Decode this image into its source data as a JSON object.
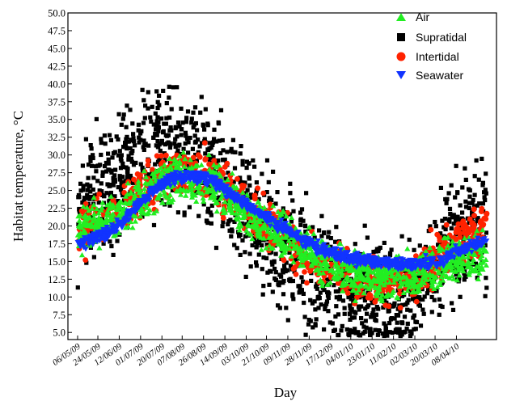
{
  "chart_data": {
    "type": "scatter",
    "title": "",
    "xlabel": "Day",
    "ylabel": "Habitat temperature, °C",
    "ylim": [
      4.0,
      50.0
    ],
    "yticks": [
      "5.0",
      "7.5",
      "10.0",
      "12.5",
      "15.0",
      "17.5",
      "20.0",
      "22.5",
      "25.0",
      "27.5",
      "30.0",
      "32.5",
      "35.0",
      "37.5",
      "40.0",
      "42.5",
      "45.0",
      "47.5",
      "50.0"
    ],
    "xlim": [
      0,
      364
    ],
    "xticks": [
      {
        "label": "06/05/09",
        "day": 0
      },
      {
        "label": "24/05/09",
        "day": 18
      },
      {
        "label": "12/06/09",
        "day": 37
      },
      {
        "label": "01/07/09",
        "day": 56
      },
      {
        "label": "20/07/09",
        "day": 75
      },
      {
        "label": "07/08/09",
        "day": 93
      },
      {
        "label": "26/08/09",
        "day": 112
      },
      {
        "label": "14/09/09",
        "day": 131
      },
      {
        "label": "03/10/09",
        "day": 150
      },
      {
        "label": "21/10/09",
        "day": 168
      },
      {
        "label": "09/11/09",
        "day": 187
      },
      {
        "label": "28/11/09",
        "day": 206
      },
      {
        "label": "17/12/09",
        "day": 225
      },
      {
        "label": "04/01/10",
        "day": 243
      },
      {
        "label": "23/01/10",
        "day": 262
      },
      {
        "label": "11/02/10",
        "day": 281
      },
      {
        "label": "02/03/10",
        "day": 300
      },
      {
        "label": "20/03/10",
        "day": 318
      },
      {
        "label": "08/04/10",
        "day": 337
      }
    ],
    "legend_position": "top-right",
    "grid": false,
    "series": [
      {
        "name": "Air",
        "marker": "triangle-up",
        "color": "#22ee22",
        "trend": [
          [
            0,
            19
          ],
          [
            30,
            21
          ],
          [
            60,
            24.5
          ],
          [
            90,
            27
          ],
          [
            120,
            26
          ],
          [
            150,
            22
          ],
          [
            180,
            19
          ],
          [
            210,
            16
          ],
          [
            240,
            13.5
          ],
          [
            270,
            12.5
          ],
          [
            300,
            13
          ],
          [
            330,
            15
          ],
          [
            364,
            16
          ]
        ],
        "spread": 4.5
      },
      {
        "name": "Supratidal",
        "marker": "square",
        "color": "#000000",
        "trend": [
          [
            0,
            22
          ],
          [
            30,
            26
          ],
          [
            60,
            31
          ],
          [
            90,
            31
          ],
          [
            120,
            28
          ],
          [
            150,
            22
          ],
          [
            180,
            17
          ],
          [
            210,
            13
          ],
          [
            240,
            10
          ],
          [
            270,
            9
          ],
          [
            300,
            11
          ],
          [
            330,
            18
          ],
          [
            364,
            20
          ]
        ],
        "spread": 12
      },
      {
        "name": "Intertidal",
        "marker": "circle",
        "color": "#ff2200",
        "trend": [
          [
            0,
            19
          ],
          [
            30,
            21
          ],
          [
            60,
            25
          ],
          [
            90,
            28
          ],
          [
            120,
            27
          ],
          [
            150,
            23
          ],
          [
            180,
            19
          ],
          [
            210,
            15
          ],
          [
            240,
            13
          ],
          [
            270,
            12
          ],
          [
            300,
            13
          ],
          [
            330,
            17
          ],
          [
            364,
            20
          ]
        ],
        "spread": 5
      },
      {
        "name": "Seawater",
        "marker": "triangle-down",
        "color": "#1133ff",
        "trend": [
          [
            0,
            17.5
          ],
          [
            20,
            18.5
          ],
          [
            40,
            20.5
          ],
          [
            60,
            24
          ],
          [
            80,
            26.5
          ],
          [
            100,
            27
          ],
          [
            120,
            26.5
          ],
          [
            140,
            24
          ],
          [
            160,
            22
          ],
          [
            180,
            20
          ],
          [
            200,
            18
          ],
          [
            220,
            16.5
          ],
          [
            240,
            15.5
          ],
          [
            260,
            15
          ],
          [
            280,
            14.8
          ],
          [
            300,
            14.5
          ],
          [
            320,
            15
          ],
          [
            340,
            16.5
          ],
          [
            364,
            18
          ]
        ],
        "spread": 1.2
      }
    ]
  }
}
